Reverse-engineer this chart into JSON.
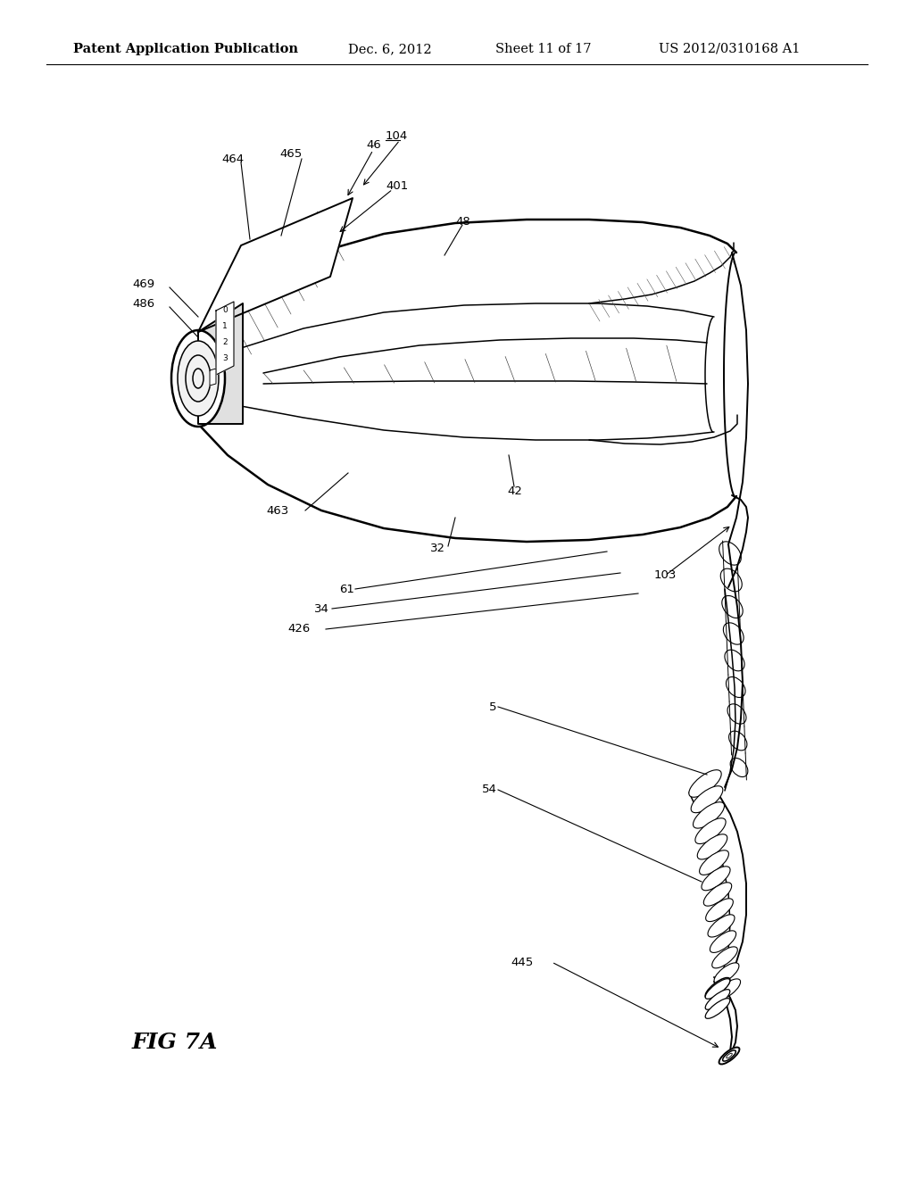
{
  "title": "Patent Application Publication",
  "date": "Dec. 6, 2012",
  "sheet": "Sheet 11 of 17",
  "patent_num": "US 2012/0310168 A1",
  "fig_label": "FIG 7A",
  "bg_color": "#ffffff",
  "line_color": "#000000",
  "header_fontsize": 10.5,
  "label_fontsize": 9.5,
  "fig_label_fontsize": 18
}
